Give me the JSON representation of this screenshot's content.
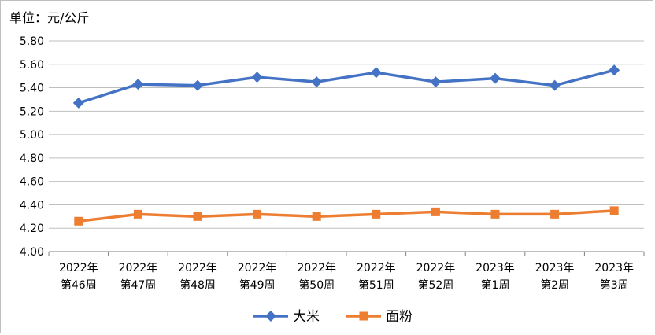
{
  "chart_data": {
    "type": "line",
    "unit_label": "单位：元/公斤",
    "categories": [
      [
        "2022年",
        "第46周"
      ],
      [
        "2022年",
        "第47周"
      ],
      [
        "2022年",
        "第48周"
      ],
      [
        "2022年",
        "第49周"
      ],
      [
        "2022年",
        "第50周"
      ],
      [
        "2022年",
        "第51周"
      ],
      [
        "2022年",
        "第52周"
      ],
      [
        "2023年",
        "第1周"
      ],
      [
        "2023年",
        "第2周"
      ],
      [
        "2023年",
        "第3周"
      ]
    ],
    "series": [
      {
        "name": "大米",
        "color": "#4472c4",
        "marker": "diamond",
        "values": [
          5.27,
          5.43,
          5.42,
          5.49,
          5.45,
          5.53,
          5.45,
          5.48,
          5.42,
          5.55
        ]
      },
      {
        "name": "面粉",
        "color": "#ed7d31",
        "marker": "square",
        "values": [
          4.26,
          4.32,
          4.3,
          4.32,
          4.3,
          4.32,
          4.34,
          4.32,
          4.32,
          4.35
        ]
      }
    ],
    "ylim": [
      4.0,
      5.8
    ],
    "y_ticks": [
      "4.00",
      "4.20",
      "4.40",
      "4.60",
      "4.80",
      "5.00",
      "5.20",
      "5.40",
      "5.60",
      "5.80"
    ],
    "grid": true,
    "legend_position": "bottom"
  }
}
